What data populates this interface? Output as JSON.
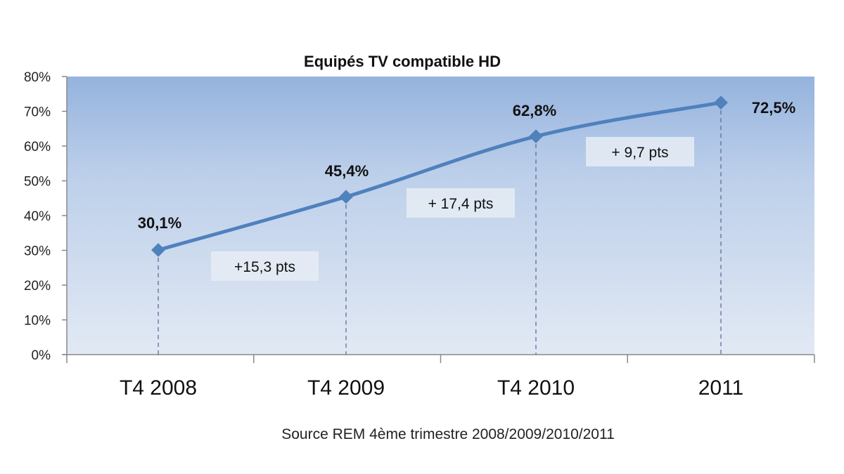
{
  "chart_data": {
    "type": "line",
    "title": "Equipés TV compatible HD",
    "categories": [
      "T4 2008",
      "T4 2009",
      "T4 2010",
      "2011"
    ],
    "values": [
      30.1,
      45.4,
      62.8,
      72.5
    ],
    "value_labels": [
      "30,1%",
      "45,4%",
      "62,8%",
      "72,5%"
    ],
    "annotations": [
      "+15,3 pts",
      "+ 17,4 pts",
      "+ 9,7 pts"
    ],
    "yticks": [
      "0%",
      "10%",
      "20%",
      "30%",
      "40%",
      "50%",
      "60%",
      "70%",
      "80%"
    ],
    "ylim": [
      0,
      80
    ],
    "xlabel": "",
    "ylabel": "",
    "source": "Source REM 4ème trimestre 2008/2009/2010/2011",
    "grid": false,
    "legend": "none",
    "colors": {
      "line": "#4f81bd",
      "plot_bg_top": "#95b3de",
      "plot_bg_bottom": "#e2e9f4",
      "annotation_box": "#e6ecf5",
      "axis": "#888888"
    }
  }
}
